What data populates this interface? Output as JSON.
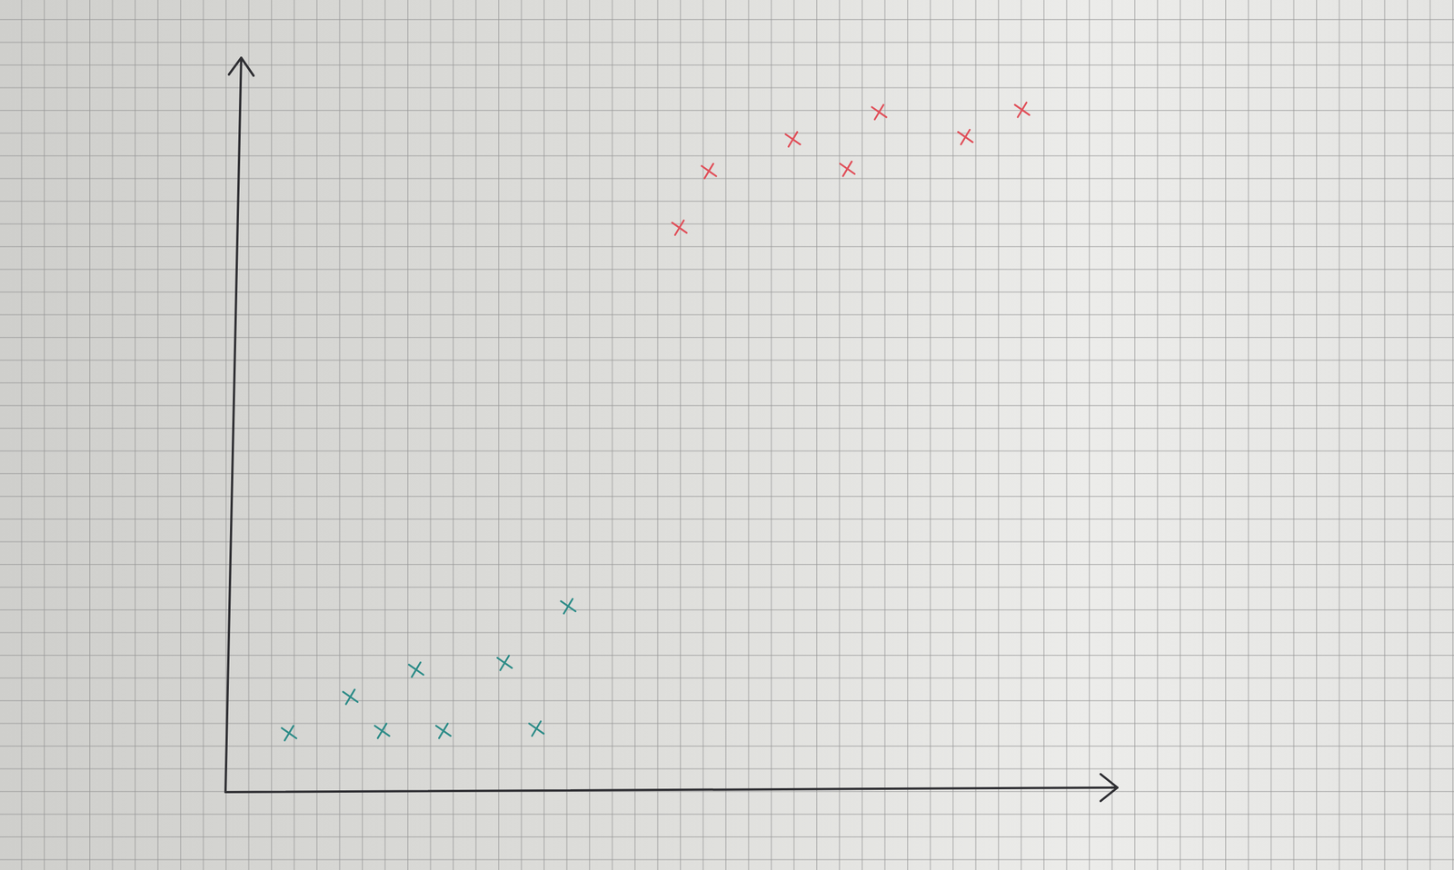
{
  "chart_data": {
    "type": "scatter",
    "tick_labels": false,
    "xlim": [
      0,
      39.3
    ],
    "ylim": [
      0,
      32.4
    ],
    "series": [
      {
        "color": "#2e8c88",
        "marker": "x",
        "x": [
          2.8,
          5.5,
          6.9,
          8.4,
          9.6,
          12.3,
          13.7,
          15.1
        ],
        "values": [
          2.6,
          4.2,
          2.7,
          5.4,
          2.7,
          5.7,
          2.8,
          8.2
        ]
      },
      {
        "color": "#e0505a",
        "marker": "x",
        "x": [
          20.0,
          21.3,
          25.0,
          27.4,
          28.8,
          32.6,
          35.1
        ],
        "values": [
          24.9,
          27.4,
          28.8,
          27.5,
          30.0,
          28.9,
          30.1
        ]
      }
    ]
  }
}
